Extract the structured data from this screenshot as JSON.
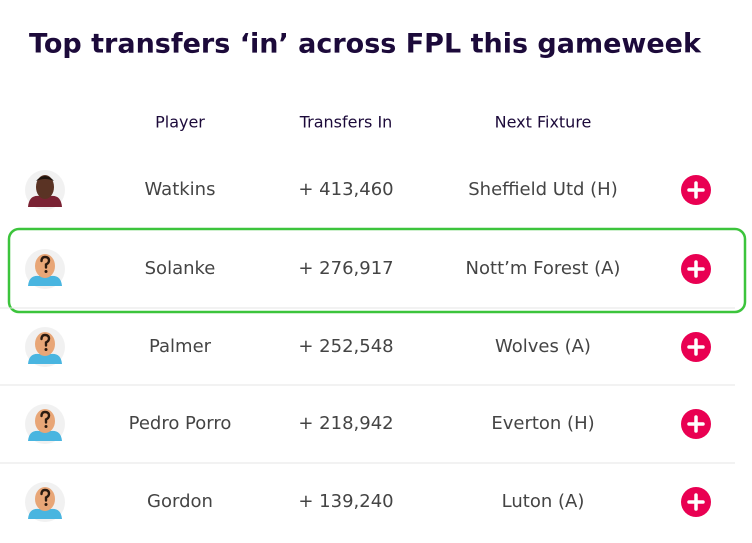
{
  "title": "Top transfers ‘in’ across FPL this gameweek",
  "table": {
    "headers": [
      "Player",
      "Transfers In",
      "Next Fixture"
    ],
    "rows": [
      [
        "Watkins",
        "+ 413,460",
        "Sheffield Utd (H)"
      ],
      [
        "Solanke",
        "+ 276,917",
        "Nott’m Forest (A)"
      ],
      [
        "Palmer",
        "+ 252,548",
        "Wolves (A)"
      ],
      [
        "Pedro Porro",
        "+ 218,942",
        "Everton (H)"
      ],
      [
        "Gordon",
        "+ 139,240",
        "Luton (A)"
      ]
    ]
  }
}
